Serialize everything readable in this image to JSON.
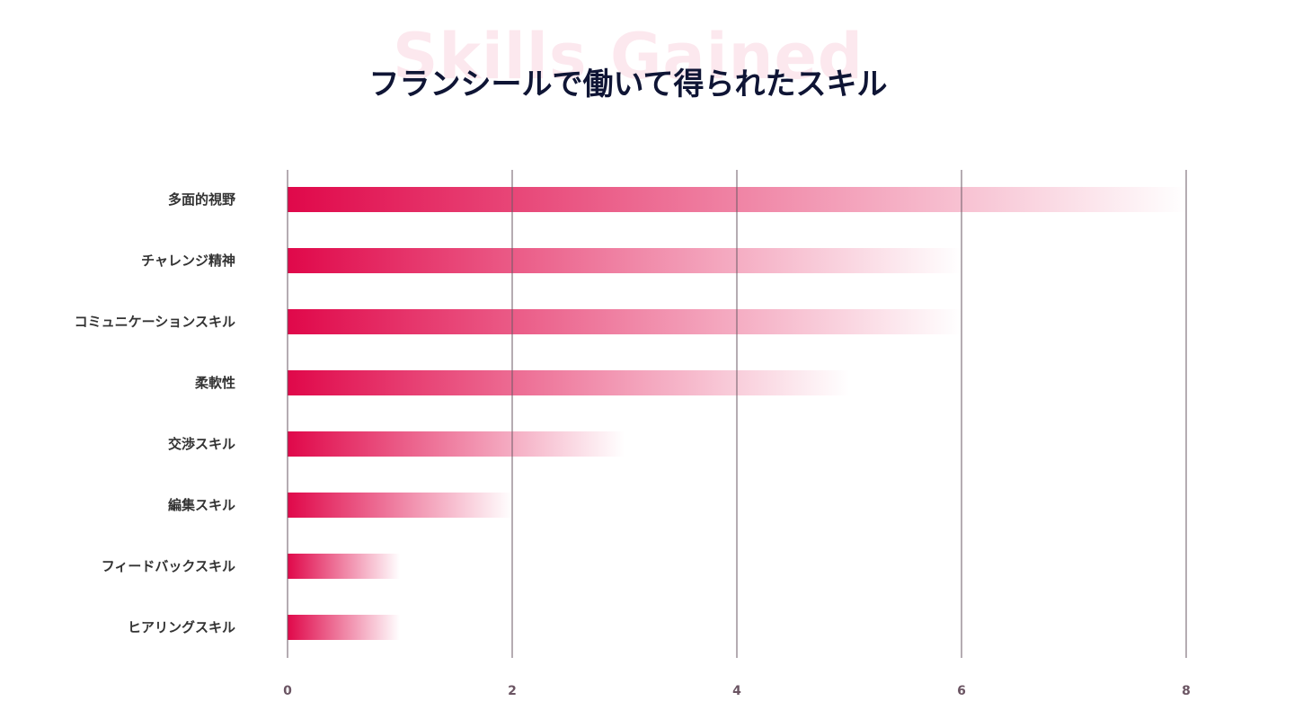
{
  "background_text": "Skills Gained",
  "colors": {
    "bar_start": "#e0084a",
    "bar_end": "#ffffff",
    "grid": "#6b5a64",
    "title": "#0f1535",
    "background_text": "#fce8ee"
  },
  "chart_data": {
    "type": "bar",
    "orientation": "horizontal",
    "title": "フランシールで働いて得られたスキル",
    "categories": [
      "多面的視野",
      "チャレンジ精神",
      "コミュニケーションスキル",
      "柔軟性",
      "交渉スキル",
      "編集スキル",
      "フィードバックスキル",
      "ヒアリングスキル"
    ],
    "values": [
      8,
      6,
      6,
      5,
      3,
      2,
      1,
      1
    ],
    "xlim": [
      0,
      8
    ],
    "xticks": [
      "0",
      "2",
      "4",
      "6",
      "8"
    ],
    "grid": true,
    "xlabel": "",
    "ylabel": ""
  }
}
